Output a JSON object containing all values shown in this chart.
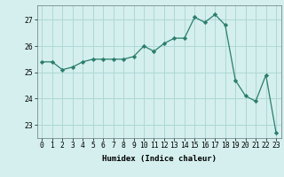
{
  "x": [
    0,
    1,
    2,
    3,
    4,
    5,
    6,
    7,
    8,
    9,
    10,
    11,
    12,
    13,
    14,
    15,
    16,
    17,
    18,
    19,
    20,
    21,
    22,
    23
  ],
  "y": [
    25.4,
    25.4,
    25.1,
    25.2,
    25.4,
    25.5,
    25.5,
    25.5,
    25.5,
    25.6,
    26.0,
    25.8,
    26.1,
    26.3,
    26.3,
    27.1,
    26.9,
    27.2,
    26.8,
    24.7,
    24.1,
    23.9,
    24.9,
    22.7
  ],
  "line_color": "#2a7d6e",
  "marker": "D",
  "marker_size": 2.2,
  "bg_color": "#d4efee",
  "grid_color": "#aed8d6",
  "xlabel": "Humidex (Indice chaleur)",
  "xlim": [
    -0.5,
    23.5
  ],
  "ylim": [
    22.5,
    27.55
  ],
  "yticks": [
    23,
    24,
    25,
    26,
    27
  ],
  "xticks": [
    0,
    1,
    2,
    3,
    4,
    5,
    6,
    7,
    8,
    9,
    10,
    11,
    12,
    13,
    14,
    15,
    16,
    17,
    18,
    19,
    20,
    21,
    22,
    23
  ],
  "xlabel_fontsize": 6.5,
  "tick_fontsize": 5.8
}
